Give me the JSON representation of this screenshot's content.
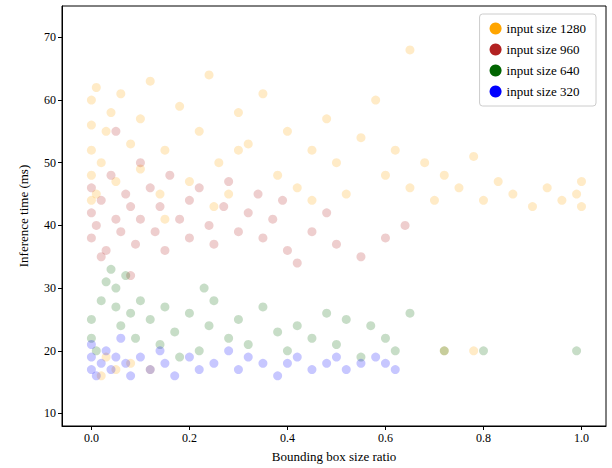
{
  "chart_data": {
    "type": "scatter",
    "x_label": "Bounding box size ratio",
    "y_label": "Inference time (ms)",
    "xlim": [
      -0.06,
      1.05
    ],
    "xticks": [
      {
        "value": 0,
        "label": "0.0"
      },
      0.2,
      0.4,
      0.6,
      0.8,
      {
        "value": 1,
        "label": "1.0"
      }
    ],
    "ylim": [
      8,
      75
    ],
    "yticks": [
      10,
      20,
      30,
      40,
      50,
      60,
      70
    ],
    "grid": false,
    "legend": "upper right",
    "marker": "circle",
    "series": [
      {
        "name": "input size 1280",
        "color": "#ffa500",
        "x": [
          0,
          0,
          0,
          0,
          0,
          0.01,
          0.01,
          0.02,
          0.03,
          0.04,
          0.05,
          0.06,
          0.08,
          0.1,
          0.1,
          0.12,
          0.14,
          0.15,
          0.18,
          0.2,
          0.22,
          0.24,
          0.26,
          0.28,
          0.3,
          0.32,
          0.35,
          0.38,
          0.4,
          0.42,
          0.45,
          0.48,
          0.5,
          0.52,
          0.55,
          0.58,
          0.6,
          0.62,
          0.65,
          0.65,
          0.68,
          0.7,
          0.72,
          0.75,
          0.78,
          0.8,
          0.83,
          0.86,
          0.9,
          0.93,
          0.96,
          0.99,
          1.0,
          1.0,
          0.05,
          0.02,
          0.08,
          0.12,
          0.03,
          0.72,
          0.78,
          0.3,
          0.15,
          0.25,
          0.45
        ],
        "values": [
          44,
          48,
          52,
          56,
          60,
          62,
          45,
          50,
          55,
          58,
          47,
          61,
          53,
          49,
          57,
          63,
          45,
          52,
          59,
          47,
          55,
          64,
          50,
          45,
          58,
          53,
          61,
          48,
          55,
          46,
          52,
          57,
          50,
          45,
          54,
          60,
          48,
          52,
          46,
          68,
          50,
          44,
          48,
          46,
          51,
          44,
          47,
          45,
          43,
          46,
          44,
          45,
          43,
          47,
          17,
          16,
          18,
          17,
          19,
          20,
          20,
          52,
          41,
          43,
          44
        ]
      },
      {
        "name": "input size 960",
        "color": "#b22222",
        "x": [
          0,
          0,
          0,
          0.01,
          0.02,
          0.03,
          0.04,
          0.05,
          0.06,
          0.07,
          0.08,
          0.09,
          0.1,
          0.1,
          0.12,
          0.13,
          0.14,
          0.15,
          0.16,
          0.18,
          0.2,
          0.2,
          0.22,
          0.24,
          0.25,
          0.27,
          0.28,
          0.3,
          0.32,
          0.34,
          0.35,
          0.37,
          0.39,
          0.4,
          0.42,
          0.45,
          0.48,
          0.5,
          0.55,
          0.6,
          0.64,
          0.05,
          0.08,
          0.02
        ],
        "values": [
          38,
          42,
          46,
          40,
          44,
          36,
          48,
          41,
          39,
          45,
          43,
          37,
          50,
          41,
          46,
          39,
          43,
          36,
          48,
          41,
          44,
          38,
          46,
          40,
          37,
          43,
          47,
          39,
          42,
          45,
          38,
          41,
          44,
          36,
          34,
          39,
          42,
          37,
          35,
          38,
          40,
          55,
          32,
          35
        ]
      },
      {
        "name": "input size 640",
        "color": "#006400",
        "x": [
          0,
          0,
          0.01,
          0.02,
          0.03,
          0.04,
          0.05,
          0.05,
          0.06,
          0.07,
          0.08,
          0.09,
          0.1,
          0.12,
          0.14,
          0.15,
          0.17,
          0.2,
          0.22,
          0.24,
          0.25,
          0.28,
          0.3,
          0.32,
          0.35,
          0.38,
          0.4,
          0.42,
          0.45,
          0.48,
          0.5,
          0.52,
          0.55,
          0.57,
          0.6,
          0.62,
          0.65,
          0.72,
          0.8,
          0.99,
          0.23,
          0.18
        ],
        "values": [
          22,
          25,
          20,
          28,
          31,
          33,
          27,
          30,
          24,
          32,
          26,
          22,
          28,
          25,
          21,
          27,
          23,
          26,
          20,
          24,
          28,
          22,
          25,
          21,
          27,
          23,
          20,
          24,
          22,
          26,
          21,
          25,
          19,
          24,
          22,
          20,
          26,
          20,
          20,
          20,
          30,
          19
        ]
      },
      {
        "name": "input size 320",
        "color": "#0000ff",
        "x": [
          0,
          0,
          0,
          0.01,
          0.02,
          0.03,
          0.04,
          0.05,
          0.06,
          0.07,
          0.08,
          0.1,
          0.12,
          0.14,
          0.15,
          0.17,
          0.2,
          0.22,
          0.25,
          0.28,
          0.3,
          0.32,
          0.35,
          0.38,
          0.4,
          0.42,
          0.45,
          0.48,
          0.5,
          0.52,
          0.55,
          0.58,
          0.6,
          0.62
        ],
        "values": [
          17,
          19,
          21,
          16,
          18,
          20,
          17,
          19,
          22,
          18,
          16,
          19,
          17,
          20,
          18,
          16,
          19,
          17,
          18,
          20,
          17,
          19,
          18,
          16,
          18,
          19,
          17,
          18,
          19,
          17,
          18,
          19,
          18,
          17
        ]
      }
    ]
  }
}
